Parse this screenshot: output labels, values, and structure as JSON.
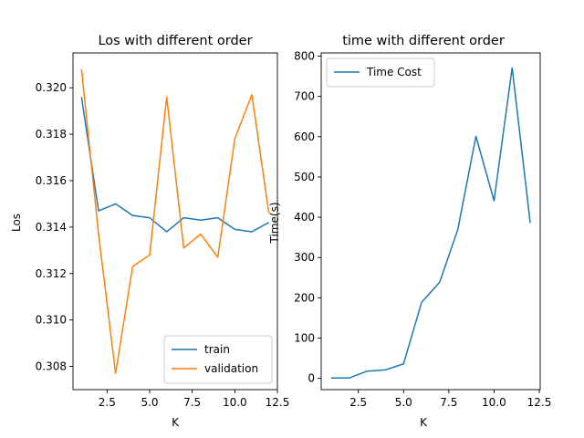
{
  "chart_data": [
    {
      "type": "line",
      "title": "Los with different order",
      "xlabel": "K",
      "ylabel": "Los",
      "xlim": [
        0.5,
        12.5
      ],
      "ylim": [
        0.307,
        0.3215
      ],
      "xticks": [
        "2.5",
        "5.0",
        "7.5",
        "10.0",
        "12.5"
      ],
      "xtick_values": [
        2.5,
        5.0,
        7.5,
        10.0,
        12.5
      ],
      "yticks": [
        "0.308",
        "0.310",
        "0.312",
        "0.314",
        "0.316",
        "0.318",
        "0.320"
      ],
      "ytick_values": [
        0.308,
        0.31,
        0.312,
        0.314,
        0.316,
        0.318,
        0.32
      ],
      "legend_position": "lower-right",
      "grid": false,
      "x": [
        1,
        2,
        3,
        4,
        5,
        6,
        7,
        8,
        9,
        10,
        11,
        12
      ],
      "series": [
        {
          "name": "train",
          "color": "#1f77b4",
          "values": [
            0.3196,
            0.3147,
            0.315,
            0.3145,
            0.3144,
            0.3138,
            0.3144,
            0.3143,
            0.3144,
            0.3139,
            0.3138,
            0.3142
          ]
        },
        {
          "name": "validation",
          "color": "#ff7f0e",
          "values": [
            0.3208,
            0.3137,
            0.3077,
            0.3123,
            0.3128,
            0.3196,
            0.3131,
            0.3137,
            0.3127,
            0.3178,
            0.3197,
            0.3146
          ]
        }
      ]
    },
    {
      "type": "line",
      "title": "time with different order",
      "xlabel": "K",
      "ylabel": "Time(s)",
      "xlim": [
        0.45,
        12.55
      ],
      "ylim": [
        -28,
        808
      ],
      "xticks": [
        "2.5",
        "5.0",
        "7.5",
        "10.0",
        "12.5"
      ],
      "xtick_values": [
        2.5,
        5.0,
        7.5,
        10.0,
        12.5
      ],
      "yticks": [
        "0",
        "100",
        "200",
        "300",
        "400",
        "500",
        "600",
        "700",
        "800"
      ],
      "ytick_values": [
        0,
        100,
        200,
        300,
        400,
        500,
        600,
        700,
        800
      ],
      "legend_position": "upper-left",
      "grid": false,
      "x": [
        1,
        2,
        3,
        4,
        5,
        6,
        7,
        8,
        9,
        10,
        11,
        12
      ],
      "series": [
        {
          "name": "Time Cost",
          "color": "#1f77b4",
          "values": [
            1,
            1,
            18,
            21,
            36,
            189,
            239,
            370,
            601,
            441,
            771,
            386
          ]
        }
      ]
    }
  ]
}
